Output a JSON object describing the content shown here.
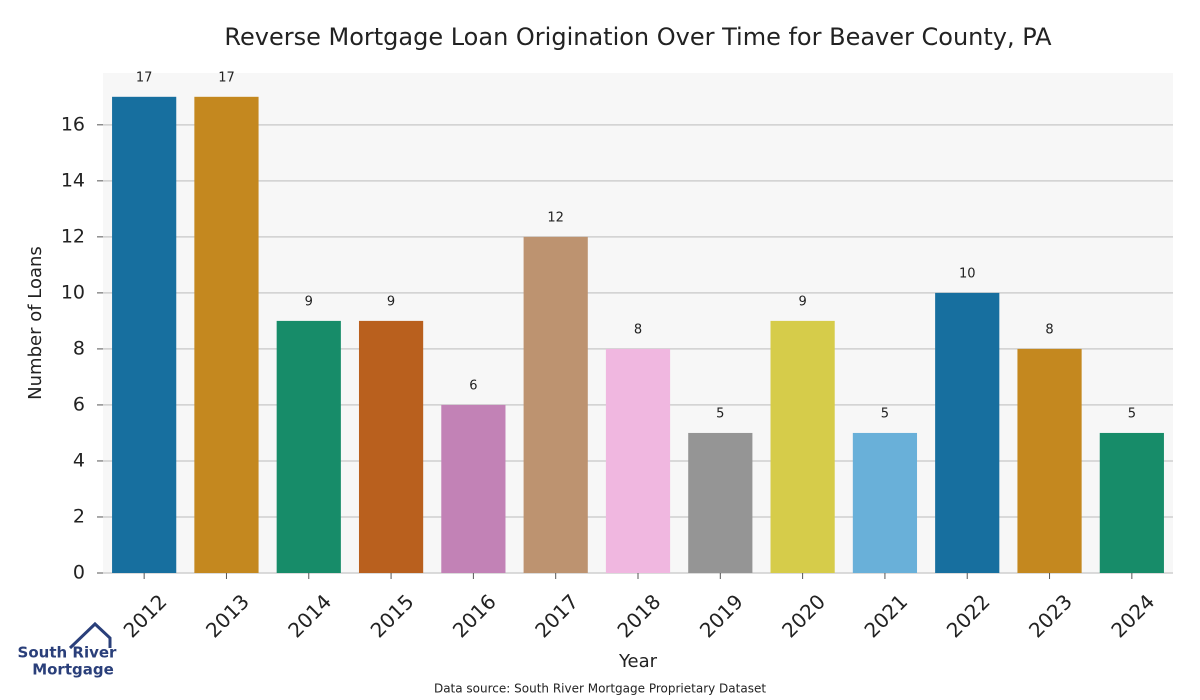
{
  "chart_data": {
    "type": "bar",
    "title": "Reverse Mortgage Loan Origination Over Time for Beaver County, PA",
    "xlabel": "Year",
    "ylabel": "Number of Loans",
    "categories": [
      "2012",
      "2013",
      "2014",
      "2015",
      "2016",
      "2017",
      "2018",
      "2019",
      "2020",
      "2021",
      "2022",
      "2023",
      "2024"
    ],
    "values": [
      17,
      17,
      9,
      9,
      6,
      12,
      8,
      5,
      9,
      5,
      10,
      8,
      5
    ],
    "colors": [
      "#176f9f",
      "#c4881f",
      "#178c69",
      "#b9601e",
      "#c282b6",
      "#bd9370",
      "#f0b7e0",
      "#959595",
      "#d6cc4a",
      "#69b0d9",
      "#176f9f",
      "#c4881f",
      "#178c69"
    ],
    "ylim": [
      0,
      17.85
    ],
    "yticks": [
      0,
      2,
      4,
      6,
      8,
      10,
      12,
      14,
      16
    ],
    "grid": true,
    "footnote": "Data source: South River Mortgage Proprietary Dataset"
  },
  "logo": {
    "line1": "South River",
    "line2": "Mortgage"
  }
}
